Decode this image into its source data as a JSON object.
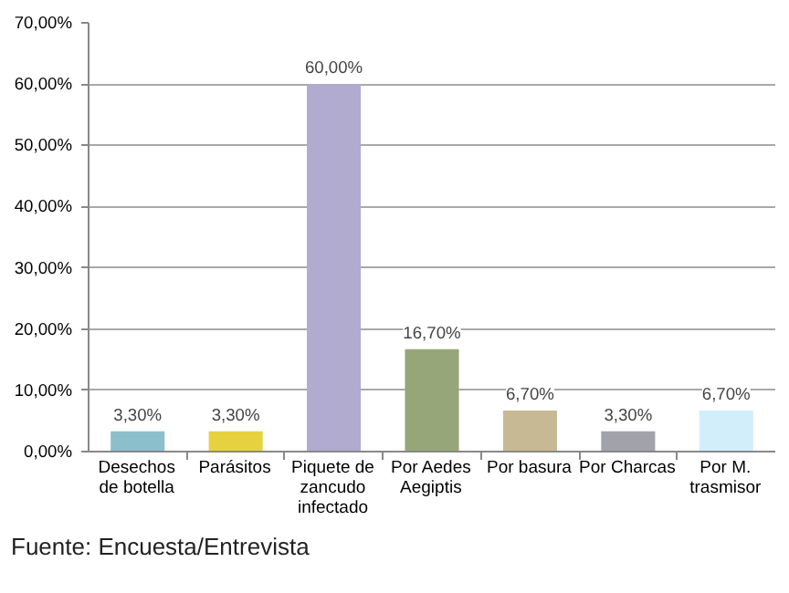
{
  "chart_data": {
    "type": "bar",
    "categories": [
      "Desechos de botella",
      "Parásitos",
      "Piquete de zancudo infectado",
      "Por Aedes Aegiptis",
      "Por basura",
      "Por Charcas",
      "Por M. trasmisor"
    ],
    "values": [
      3.3,
      3.3,
      60,
      16.7,
      6.7,
      3.3,
      6.7
    ],
    "colors": [
      "#8cbfcc",
      "#e6d23e",
      "#b1abcf",
      "#97a678",
      "#c8b995",
      "#a2a2ab",
      "#d2eefa"
    ],
    "value_labels": [
      "3,30%",
      "3,30%",
      "60,00%",
      "16,70%",
      "6,70%",
      "3,30%",
      "6,70%"
    ],
    "ylim": [
      0,
      70
    ],
    "yticks": [
      {
        "value": 0,
        "label": "0,00%"
      },
      {
        "value": 10,
        "label": "10,00%"
      },
      {
        "value": 20,
        "label": "20,00%"
      },
      {
        "value": 30,
        "label": "30,00%"
      },
      {
        "value": 40,
        "label": "40,00%"
      },
      {
        "value": 50,
        "label": "50,00%"
      },
      {
        "value": 60,
        "label": "60,00%"
      },
      {
        "value": 70,
        "label": "70,00%"
      }
    ],
    "grid": "y",
    "annotations": [
      "Fuente: Encuesta/Entrevista"
    ]
  }
}
